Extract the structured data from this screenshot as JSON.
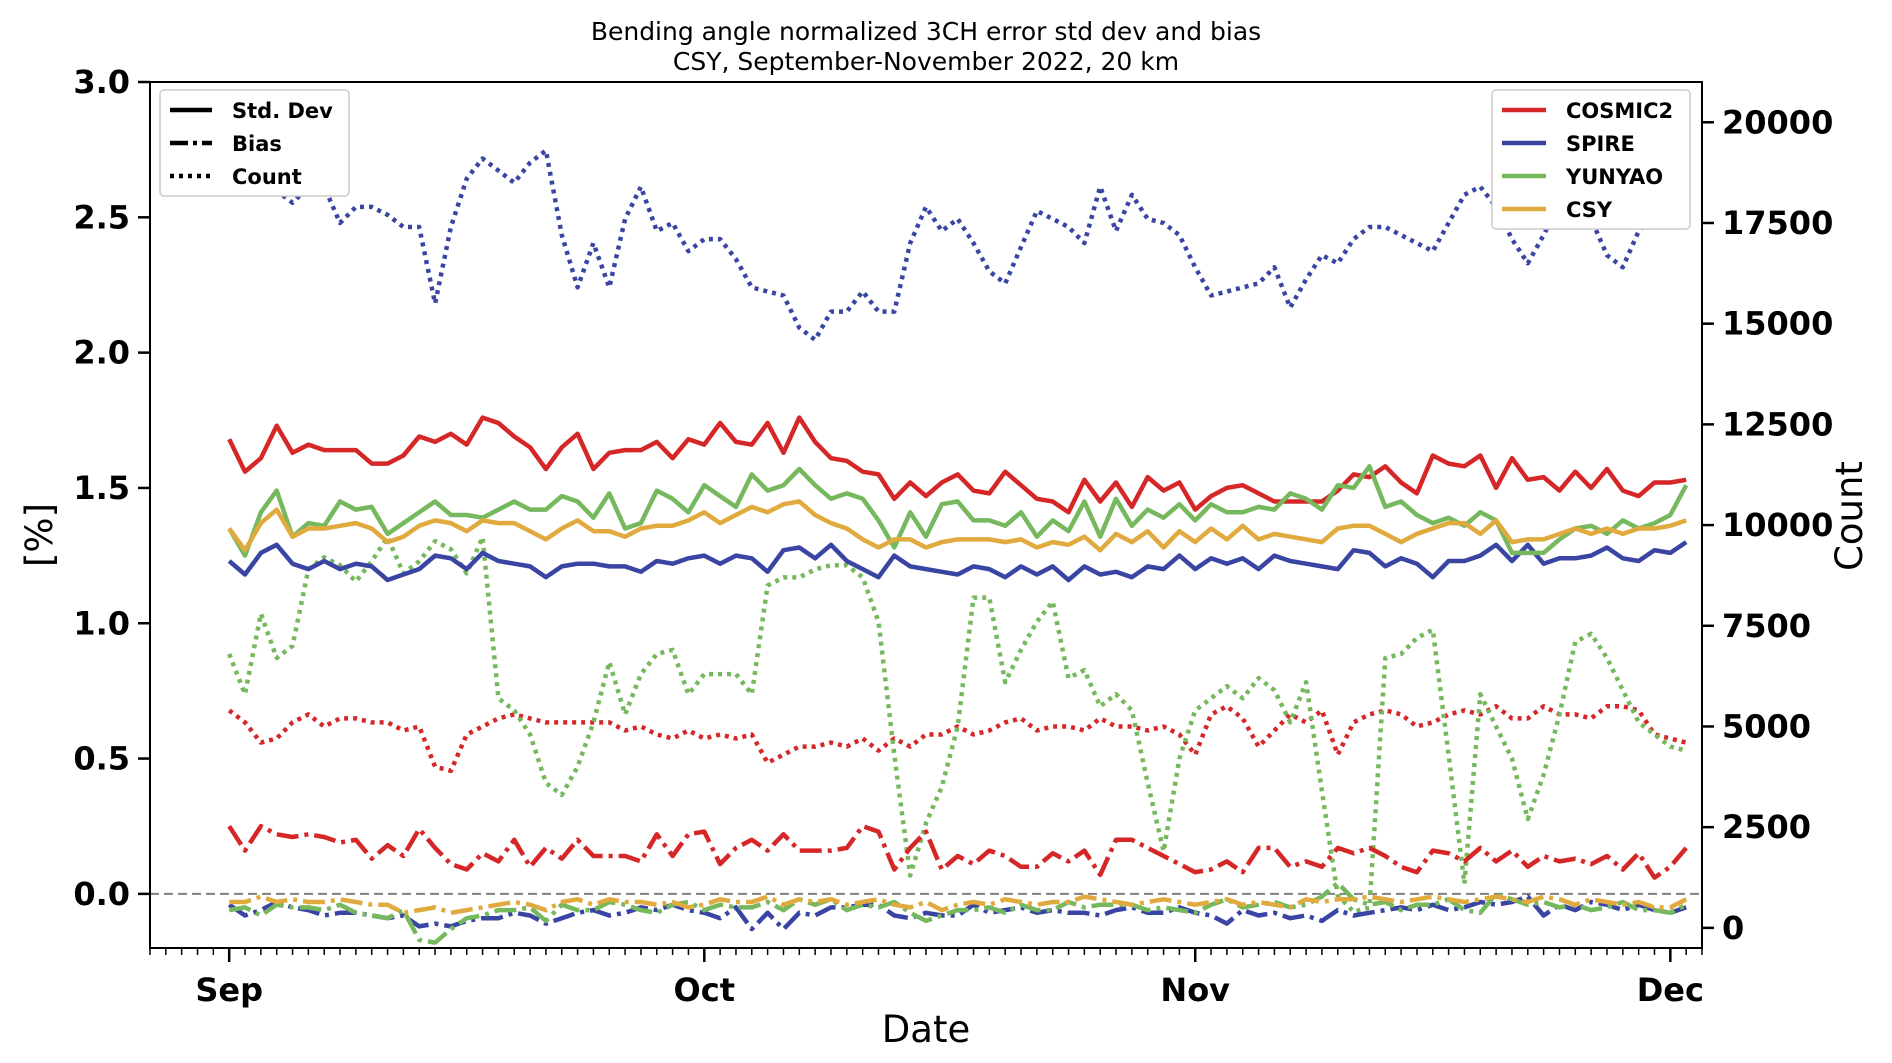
{
  "chart_data": {
    "type": "line",
    "title": "Bending angle normalized 3CH error std dev and bias",
    "subtitle": "CSY, September-November 2022, 20 km",
    "xlabel": "Date",
    "ylabel_left": "[%]",
    "ylabel_right": "Count",
    "x_start": "2022-09-01",
    "x_end": "2022-11-30",
    "xlim": [
      "2022-08-27",
      "2022-12-03"
    ],
    "x_ticks": [
      {
        "date": "2022-09-01",
        "label": "Sep"
      },
      {
        "date": "2022-10-01",
        "label": "Oct"
      },
      {
        "date": "2022-11-01",
        "label": "Nov"
      },
      {
        "date": "2022-12-01",
        "label": "Dec"
      }
    ],
    "ylim_left": [
      -0.2,
      3.0
    ],
    "ylim_right": [
      -500,
      21000
    ],
    "y_ticks_left": [
      "0.0",
      "0.5",
      "1.0",
      "1.5",
      "2.0",
      "2.5",
      "3.0"
    ],
    "y_ticks_right": [
      "0",
      "2500",
      "5000",
      "7500",
      "10000",
      "12500",
      "15000",
      "17500",
      "20000"
    ],
    "grid": false,
    "zero_line": {
      "value": 0.0,
      "color": "#808080",
      "style": "dashed"
    },
    "style_legend": {
      "position": "top-left",
      "entries": [
        {
          "label": "Std. Dev",
          "style": "solid"
        },
        {
          "label": "Bias",
          "style": "dashdot"
        },
        {
          "label": "Count",
          "style": "dotted"
        }
      ]
    },
    "series_legend": {
      "position": "top-right",
      "entries": [
        {
          "label": "COSMIC2",
          "color": "#d62728"
        },
        {
          "label": "SPIRE",
          "color": "#3a45a3"
        },
        {
          "label": "YUNYAO",
          "color": "#76b85e"
        },
        {
          "label": "CSY",
          "color": "#e0aa3e"
        }
      ]
    },
    "series": [
      {
        "name": "COSMIC2",
        "color": "#d62728",
        "std_dev": [
          1.68,
          1.56,
          1.61,
          1.73,
          1.63,
          1.66,
          1.64,
          1.64,
          1.64,
          1.59,
          1.59,
          1.62,
          1.69,
          1.67,
          1.7,
          1.66,
          1.76,
          1.74,
          1.69,
          1.65,
          1.57,
          1.65,
          1.7,
          1.57,
          1.63,
          1.64,
          1.64,
          1.67,
          1.61,
          1.68,
          1.66,
          1.74,
          1.67,
          1.66,
          1.74,
          1.63,
          1.76,
          1.67,
          1.61,
          1.6,
          1.56,
          1.55,
          1.46,
          1.52,
          1.47,
          1.52,
          1.55,
          1.49,
          1.48,
          1.56,
          1.51,
          1.46,
          1.45,
          1.41,
          1.53,
          1.45,
          1.52,
          1.43,
          1.54,
          1.49,
          1.52,
          1.42,
          1.47,
          1.5,
          1.51,
          1.48,
          1.45,
          1.45,
          1.45,
          1.45,
          1.49,
          1.55,
          1.54,
          1.58,
          1.52,
          1.48,
          1.62,
          1.59,
          1.58,
          1.62,
          1.5,
          1.61,
          1.53,
          1.54,
          1.49,
          1.56,
          1.5,
          1.57,
          1.49,
          1.47,
          1.52,
          1.52,
          1.53
        ],
        "bias": [
          0.25,
          0.16,
          0.25,
          0.22,
          0.21,
          0.22,
          0.21,
          0.19,
          0.2,
          0.13,
          0.18,
          0.14,
          0.24,
          0.17,
          0.11,
          0.09,
          0.15,
          0.12,
          0.2,
          0.1,
          0.17,
          0.13,
          0.2,
          0.14,
          0.14,
          0.14,
          0.12,
          0.22,
          0.14,
          0.22,
          0.23,
          0.11,
          0.17,
          0.2,
          0.16,
          0.22,
          0.16,
          0.16,
          0.16,
          0.17,
          0.25,
          0.23,
          0.09,
          0.17,
          0.23,
          0.09,
          0.14,
          0.11,
          0.16,
          0.14,
          0.1,
          0.1,
          0.15,
          0.12,
          0.16,
          0.07,
          0.2,
          0.2,
          0.17,
          0.14,
          0.11,
          0.08,
          0.09,
          0.12,
          0.08,
          0.17,
          0.17,
          0.1,
          0.12,
          0.1,
          0.17,
          0.15,
          0.17,
          0.14,
          0.1,
          0.08,
          0.16,
          0.15,
          0.12,
          0.17,
          0.12,
          0.16,
          0.1,
          0.14,
          0.12,
          0.13,
          0.11,
          0.14,
          0.09,
          0.15,
          0.06,
          0.1,
          0.17
        ],
        "count": [
          5400,
          5100,
          4600,
          4700,
          5100,
          5300,
          5000,
          5200,
          5200,
          5100,
          5100,
          4900,
          5000,
          4000,
          3900,
          4800,
          5000,
          5200,
          5300,
          5200,
          5100,
          5100,
          5100,
          5100,
          5100,
          4900,
          5000,
          4800,
          4700,
          4900,
          4700,
          4800,
          4700,
          4800,
          4100,
          4300,
          4500,
          4500,
          4600,
          4500,
          4700,
          4400,
          4700,
          4500,
          4800,
          4800,
          5000,
          4800,
          4900,
          5100,
          5200,
          4900,
          5000,
          5000,
          4900,
          5200,
          5000,
          5000,
          4900,
          5000,
          4800,
          4300,
          5300,
          5500,
          5200,
          4500,
          4900,
          5300,
          5100,
          5400,
          4300,
          5100,
          5300,
          5400,
          5300,
          5000,
          5100,
          5300,
          5400,
          5300,
          5500,
          5200,
          5200,
          5500,
          5300,
          5300,
          5200,
          5500,
          5500,
          5400,
          4800,
          4700,
          4600
        ]
      },
      {
        "name": "SPIRE",
        "color": "#3a45a3",
        "std_dev": [
          1.23,
          1.18,
          1.26,
          1.29,
          1.22,
          1.2,
          1.23,
          1.2,
          1.22,
          1.21,
          1.16,
          1.18,
          1.2,
          1.25,
          1.24,
          1.2,
          1.26,
          1.23,
          1.22,
          1.21,
          1.17,
          1.21,
          1.22,
          1.22,
          1.21,
          1.21,
          1.19,
          1.23,
          1.22,
          1.24,
          1.25,
          1.22,
          1.25,
          1.24,
          1.19,
          1.27,
          1.28,
          1.24,
          1.29,
          1.23,
          1.2,
          1.17,
          1.25,
          1.21,
          1.2,
          1.19,
          1.18,
          1.21,
          1.2,
          1.17,
          1.21,
          1.18,
          1.21,
          1.16,
          1.21,
          1.18,
          1.19,
          1.17,
          1.21,
          1.2,
          1.25,
          1.2,
          1.24,
          1.22,
          1.24,
          1.2,
          1.25,
          1.23,
          1.22,
          1.21,
          1.2,
          1.27,
          1.26,
          1.21,
          1.24,
          1.22,
          1.17,
          1.23,
          1.23,
          1.25,
          1.29,
          1.23,
          1.29,
          1.22,
          1.24,
          1.24,
          1.25,
          1.28,
          1.24,
          1.23,
          1.27,
          1.26,
          1.3
        ],
        "bias": [
          -0.04,
          -0.08,
          -0.06,
          -0.03,
          -0.05,
          -0.06,
          -0.08,
          -0.07,
          -0.07,
          -0.08,
          -0.09,
          -0.08,
          -0.12,
          -0.11,
          -0.12,
          -0.1,
          -0.09,
          -0.09,
          -0.07,
          -0.08,
          -0.11,
          -0.09,
          -0.07,
          -0.06,
          -0.08,
          -0.07,
          -0.05,
          -0.06,
          -0.04,
          -0.06,
          -0.07,
          -0.09,
          -0.05,
          -0.13,
          -0.07,
          -0.13,
          -0.07,
          -0.08,
          -0.05,
          -0.05,
          -0.04,
          -0.04,
          -0.08,
          -0.09,
          -0.07,
          -0.08,
          -0.08,
          -0.04,
          -0.07,
          -0.06,
          -0.05,
          -0.07,
          -0.06,
          -0.07,
          -0.07,
          -0.08,
          -0.06,
          -0.05,
          -0.07,
          -0.07,
          -0.05,
          -0.07,
          -0.08,
          -0.11,
          -0.06,
          -0.08,
          -0.07,
          -0.09,
          -0.08,
          -0.1,
          -0.06,
          -0.08,
          -0.07,
          -0.06,
          -0.05,
          -0.06,
          -0.04,
          -0.06,
          -0.05,
          -0.03,
          -0.04,
          -0.03,
          -0.01,
          -0.08,
          -0.04,
          -0.06,
          -0.03,
          -0.04,
          -0.06,
          -0.04,
          -0.06,
          -0.07,
          -0.05
        ],
        "count": [
          19300,
          19100,
          18500,
          18300,
          18000,
          18400,
          18400,
          17500,
          17900,
          17900,
          17700,
          17400,
          17400,
          15500,
          17400,
          18600,
          19100,
          18800,
          18500,
          19000,
          19300,
          17200,
          15900,
          17000,
          15900,
          17600,
          18400,
          17300,
          17500,
          16800,
          17100,
          17100,
          16600,
          15900,
          15800,
          15700,
          14900,
          14600,
          15300,
          15300,
          15800,
          15300,
          15300,
          17000,
          17900,
          17300,
          17600,
          17000,
          16300,
          16000,
          16900,
          17800,
          17600,
          17400,
          17000,
          18400,
          17300,
          18200,
          17600,
          17500,
          17200,
          16400,
          15700,
          15800,
          15900,
          16000,
          16400,
          15400,
          16100,
          16700,
          16500,
          17100,
          17400,
          17400,
          17200,
          17000,
          16800,
          17500,
          18200,
          18400,
          17900,
          17100,
          16500,
          17200,
          18000,
          17700,
          17600,
          16700,
          16400,
          17300,
          17700,
          17600,
          17800
        ]
      },
      {
        "name": "YUNYAO",
        "color": "#76b85e",
        "std_dev": [
          1.35,
          1.25,
          1.41,
          1.49,
          1.32,
          1.37,
          1.36,
          1.45,
          1.42,
          1.43,
          1.33,
          1.37,
          1.41,
          1.45,
          1.4,
          1.4,
          1.39,
          1.42,
          1.45,
          1.42,
          1.42,
          1.47,
          1.45,
          1.39,
          1.48,
          1.35,
          1.37,
          1.49,
          1.46,
          1.41,
          1.51,
          1.47,
          1.43,
          1.55,
          1.49,
          1.51,
          1.57,
          1.51,
          1.46,
          1.48,
          1.46,
          1.38,
          1.28,
          1.41,
          1.32,
          1.44,
          1.45,
          1.38,
          1.38,
          1.36,
          1.41,
          1.32,
          1.38,
          1.34,
          1.45,
          1.32,
          1.46,
          1.36,
          1.42,
          1.39,
          1.44,
          1.38,
          1.44,
          1.41,
          1.41,
          1.43,
          1.42,
          1.48,
          1.46,
          1.42,
          1.51,
          1.5,
          1.58,
          1.43,
          1.45,
          1.4,
          1.37,
          1.39,
          1.36,
          1.41,
          1.38,
          1.26,
          1.26,
          1.26,
          1.31,
          1.35,
          1.36,
          1.33,
          1.38,
          1.35,
          1.37,
          1.4,
          1.51
        ],
        "count": [
          6800,
          5800,
          7800,
          6700,
          7000,
          8900,
          9200,
          9000,
          8600,
          9100,
          9700,
          8800,
          9100,
          9600,
          9400,
          8800,
          9700,
          5700,
          5400,
          4800,
          3600,
          3300,
          4000,
          5100,
          6600,
          5300,
          6300,
          6800,
          6900,
          5800,
          6300,
          6300,
          6300,
          5800,
          8500,
          8700,
          8700,
          8900,
          9000,
          9000,
          8700,
          7600,
          4300,
          1300,
          2600,
          3500,
          5000,
          8200,
          8200,
          6100,
          6900,
          7600,
          8100,
          6200,
          6400,
          5500,
          5800,
          5400,
          3600,
          1900,
          4200,
          5400,
          5700,
          6000,
          5700,
          6200,
          5900,
          5100,
          6100,
          3400,
          800,
          400,
          500,
          6700,
          6800,
          7200,
          7400,
          4300,
          1100,
          5800,
          5000,
          4200,
          2700,
          3800,
          5300,
          7100,
          7300,
          6700,
          5900,
          5100,
          4800,
          4500,
          4400
        ],
        "bias": [
          -0.06,
          -0.05,
          -0.08,
          -0.04,
          -0.05,
          -0.05,
          -0.06,
          -0.04,
          -0.07,
          -0.08,
          -0.09,
          -0.06,
          -0.17,
          -0.18,
          -0.13,
          -0.09,
          -0.08,
          -0.06,
          -0.06,
          -0.05,
          -0.1,
          -0.04,
          -0.06,
          -0.06,
          -0.03,
          -0.04,
          -0.06,
          -0.07,
          -0.04,
          -0.03,
          -0.06,
          -0.04,
          -0.05,
          -0.05,
          -0.03,
          -0.06,
          -0.02,
          -0.04,
          -0.02,
          -0.06,
          -0.04,
          -0.05,
          -0.03,
          -0.07,
          -0.1,
          -0.08,
          -0.06,
          -0.06,
          -0.05,
          -0.07,
          -0.04,
          -0.06,
          -0.06,
          -0.03,
          -0.05,
          -0.04,
          -0.04,
          -0.04,
          -0.06,
          -0.05,
          -0.06,
          -0.07,
          -0.04,
          -0.02,
          -0.05,
          -0.04,
          -0.03,
          -0.05,
          -0.04,
          -0.01,
          0.04,
          -0.02,
          -0.04,
          -0.03,
          -0.06,
          -0.04,
          -0.04,
          -0.02,
          -0.06,
          -0.07,
          0.0,
          -0.02,
          -0.04,
          -0.03,
          -0.05,
          -0.04,
          -0.06,
          -0.05,
          -0.03,
          -0.06,
          -0.06,
          -0.07,
          -0.04
        ]
      },
      {
        "name": "CSY",
        "color": "#e0aa3e",
        "std_dev": [
          1.35,
          1.27,
          1.37,
          1.42,
          1.32,
          1.35,
          1.35,
          1.36,
          1.37,
          1.35,
          1.3,
          1.32,
          1.36,
          1.38,
          1.37,
          1.34,
          1.38,
          1.37,
          1.37,
          1.34,
          1.31,
          1.35,
          1.38,
          1.34,
          1.34,
          1.32,
          1.35,
          1.36,
          1.36,
          1.38,
          1.41,
          1.37,
          1.4,
          1.43,
          1.41,
          1.44,
          1.45,
          1.4,
          1.37,
          1.35,
          1.31,
          1.28,
          1.31,
          1.31,
          1.28,
          1.3,
          1.31,
          1.31,
          1.31,
          1.3,
          1.31,
          1.28,
          1.3,
          1.29,
          1.32,
          1.27,
          1.33,
          1.3,
          1.34,
          1.28,
          1.34,
          1.3,
          1.35,
          1.31,
          1.36,
          1.31,
          1.33,
          1.32,
          1.31,
          1.3,
          1.35,
          1.36,
          1.36,
          1.33,
          1.3,
          1.33,
          1.35,
          1.37,
          1.37,
          1.33,
          1.38,
          1.3,
          1.31,
          1.31,
          1.33,
          1.35,
          1.33,
          1.35,
          1.33,
          1.35,
          1.35,
          1.36,
          1.38
        ],
        "bias": [
          -0.03,
          -0.03,
          -0.01,
          -0.03,
          -0.02,
          -0.03,
          -0.03,
          -0.02,
          -0.03,
          -0.04,
          -0.04,
          -0.07,
          -0.06,
          -0.05,
          -0.07,
          -0.06,
          -0.05,
          -0.04,
          -0.03,
          -0.04,
          -0.06,
          -0.03,
          -0.02,
          -0.04,
          -0.02,
          -0.03,
          -0.03,
          -0.04,
          -0.03,
          -0.05,
          -0.04,
          -0.02,
          -0.03,
          -0.03,
          -0.01,
          -0.04,
          -0.02,
          -0.03,
          -0.02,
          -0.04,
          -0.03,
          -0.02,
          -0.04,
          -0.05,
          -0.03,
          -0.06,
          -0.04,
          -0.03,
          -0.04,
          -0.02,
          -0.03,
          -0.04,
          -0.03,
          -0.03,
          -0.01,
          -0.02,
          -0.03,
          -0.04,
          -0.03,
          -0.02,
          -0.03,
          -0.04,
          -0.03,
          -0.02,
          -0.04,
          -0.03,
          -0.04,
          -0.05,
          -0.02,
          -0.03,
          -0.02,
          -0.02,
          -0.01,
          -0.02,
          -0.03,
          -0.02,
          -0.01,
          -0.02,
          -0.03,
          -0.02,
          -0.01,
          -0.02,
          -0.03,
          -0.01,
          -0.02,
          -0.04,
          -0.02,
          -0.03,
          -0.04,
          -0.03,
          -0.05,
          -0.05,
          -0.02
        ]
      }
    ]
  }
}
